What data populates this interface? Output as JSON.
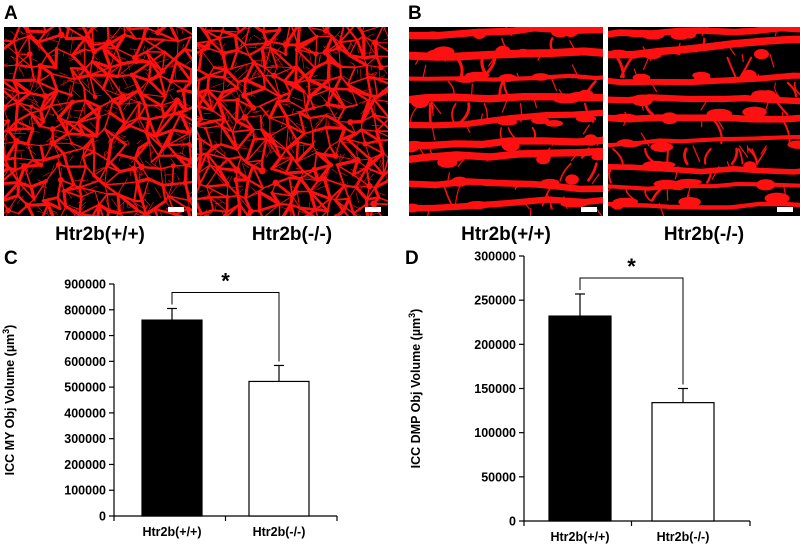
{
  "panels": {
    "A": {
      "letter": "A",
      "labels": [
        "Htr2b(+/+)",
        "Htr2b(-/-)"
      ]
    },
    "B": {
      "letter": "B",
      "labels": [
        "Htr2b(+/+)",
        "Htr2b(-/-)"
      ]
    },
    "C": {
      "letter": "C"
    },
    "D": {
      "letter": "D"
    }
  },
  "colors": {
    "fluorescence": "#ff1010",
    "background": "#000000",
    "bar_wt": "#000000",
    "bar_ko": "#ffffff"
  },
  "chart_data": [
    {
      "type": "bar",
      "categories": [
        "Htr2b(+/+)",
        "Htr2b(-/-)"
      ],
      "values": [
        760000,
        522000
      ],
      "errors": [
        45000,
        62000
      ],
      "bar_colors": [
        "#000000",
        "#ffffff"
      ],
      "ylabel_main": "ICC MY Obj Volume (µm",
      "ylabel_sup": "3",
      "ylabel_end": ")",
      "ylim": [
        0,
        900000
      ],
      "yticks": [
        0,
        100000,
        200000,
        300000,
        400000,
        500000,
        600000,
        700000,
        800000,
        900000
      ],
      "significance": "*"
    },
    {
      "type": "bar",
      "categories": [
        "Htr2b(+/+)",
        "Htr2b(-/-)"
      ],
      "values": [
        232000,
        134000
      ],
      "errors": [
        25000,
        16000
      ],
      "bar_colors": [
        "#000000",
        "#ffffff"
      ],
      "ylabel_main": "ICC DMP Obj Volume (µm",
      "ylabel_sup": "3",
      "ylabel_end": ")",
      "ylim": [
        0,
        300000
      ],
      "yticks": [
        0,
        50000,
        100000,
        150000,
        200000,
        250000,
        300000
      ],
      "significance": "*"
    }
  ]
}
